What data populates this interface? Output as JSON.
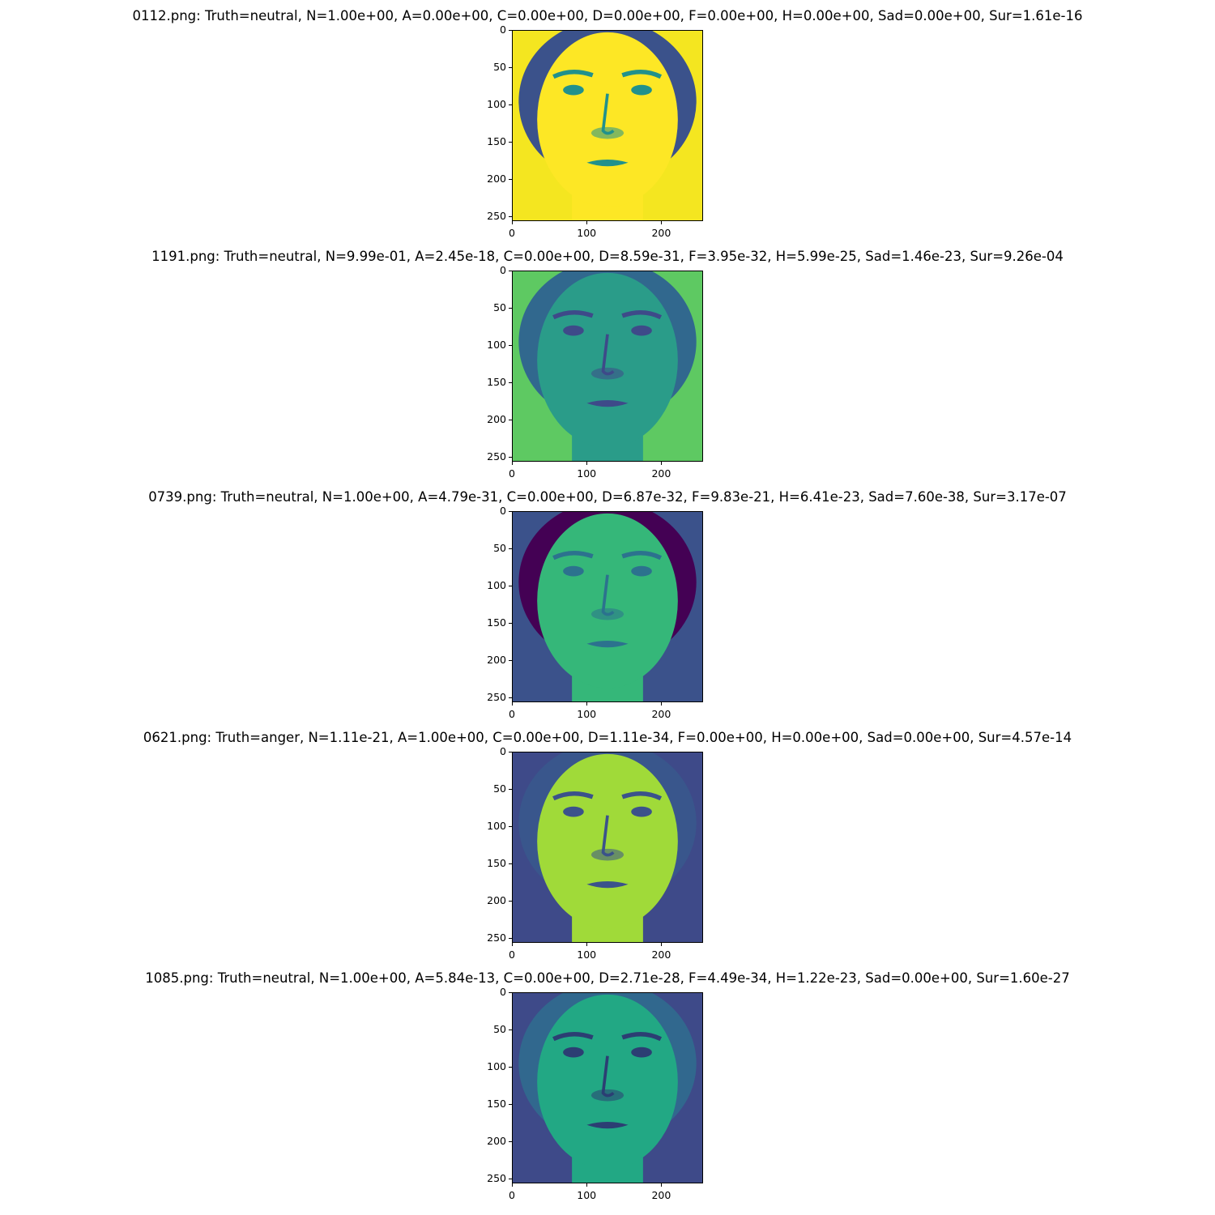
{
  "figure": {
    "panels": [
      {
        "title": "0112.png: Truth=neutral, N=1.00e+00, A=0.00e+00, C=0.00e+00, D=0.00e+00, F=0.00e+00, H=0.00e+00, Sad=0.00e+00, Sur=1.61e-16",
        "bg": "#f4e620",
        "skin": "#fde725",
        "hair": "#3b528b",
        "feature": "#21918c"
      },
      {
        "title": "1191.png: Truth=neutral, N=9.99e-01, A=2.45e-18, C=0.00e+00, D=8.59e-31, F=3.95e-32, H=5.99e-25, Sad=1.46e-23, Sur=9.26e-04",
        "bg": "#5ec962",
        "skin": "#2a9c89",
        "hair": "#31688e",
        "feature": "#3e4a89"
      },
      {
        "title": "0739.png: Truth=neutral, N=1.00e+00, A=4.79e-31, C=0.00e+00, D=6.87e-32, F=9.83e-21, H=6.41e-23, Sad=7.60e-38, Sur=3.17e-07",
        "bg": "#3b528b",
        "skin": "#35b779",
        "hair": "#440154",
        "feature": "#2c728e"
      },
      {
        "title": "0621.png: Truth=anger, N=1.11e-21, A=1.00e+00, C=0.00e+00, D=1.11e-34, F=0.00e+00, H=0.00e+00, Sad=0.00e+00, Sur=4.57e-14",
        "bg": "#3e4a89",
        "skin": "#a0da39",
        "hair": "#39568c",
        "feature": "#3b528b"
      },
      {
        "title": "1085.png: Truth=neutral, N=1.00e+00, A=5.84e-13, C=0.00e+00, D=2.71e-28, F=4.49e-34, H=1.22e-23, Sad=0.00e+00, Sur=1.60e-27",
        "bg": "#3e4a89",
        "skin": "#22a884",
        "hair": "#31688e",
        "feature": "#2c3e73"
      }
    ],
    "x_ticks": [
      "0",
      "100",
      "200"
    ],
    "y_ticks": [
      "0",
      "50",
      "100",
      "150",
      "200",
      "250"
    ]
  }
}
